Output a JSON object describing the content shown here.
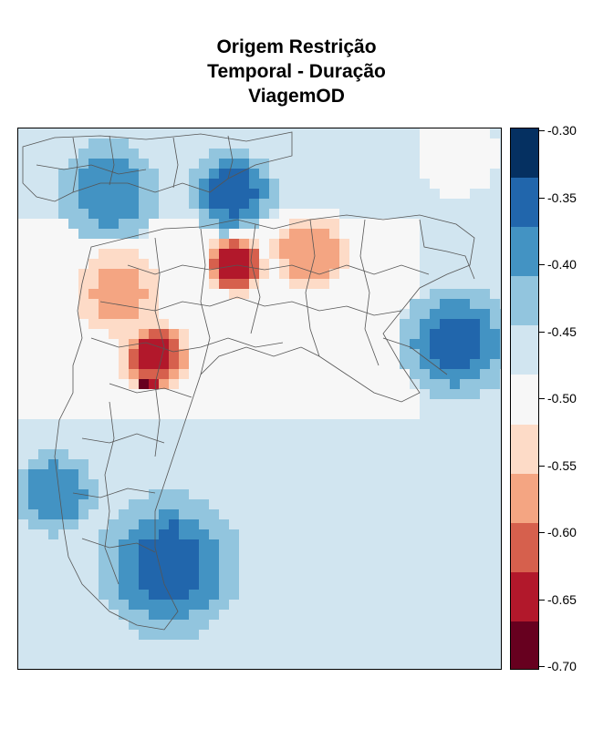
{
  "title_lines": [
    "Origem Restrição",
    "Temporal - Duração",
    "ViagemOD"
  ],
  "legend": {
    "colors": [
      "#053061",
      "#2166ac",
      "#4393c3",
      "#92c5de",
      "#d1e5f0",
      "#f7f7f7",
      "#fddbc7",
      "#f4a582",
      "#d6604d",
      "#b2182b",
      "#67001f"
    ],
    "breaks": [
      -0.3,
      -0.35,
      -0.4,
      -0.45,
      -0.5,
      -0.55,
      -0.6,
      -0.65,
      -0.7
    ],
    "tick_labels": [
      "-0.30",
      "-0.35",
      "-0.40",
      "-0.45",
      "-0.50",
      "-0.55",
      "-0.60",
      "-0.65",
      "-0.70"
    ]
  },
  "chart_data": {
    "type": "heatmap",
    "value_range": [
      -0.7,
      -0.3
    ],
    "background_value": -0.47,
    "hotspots": [
      {
        "area": "north-center",
        "value": -0.36
      },
      {
        "area": "north-top-spot",
        "value": -0.31
      },
      {
        "area": "northwest",
        "value": -0.39
      },
      {
        "area": "center",
        "value": -0.66
      },
      {
        "area": "center-east",
        "value": -0.59
      },
      {
        "area": "west",
        "value": -0.56
      },
      {
        "area": "southwest-center",
        "value": -0.63
      },
      {
        "area": "southwest-spot",
        "value": -0.69
      },
      {
        "area": "east",
        "value": -0.37
      },
      {
        "area": "southwest-edge",
        "value": -0.38
      },
      {
        "area": "south",
        "value": -0.37
      },
      {
        "area": "south-spot",
        "value": -0.31
      },
      {
        "area": "top-right-corner",
        "value": -0.5
      }
    ]
  }
}
